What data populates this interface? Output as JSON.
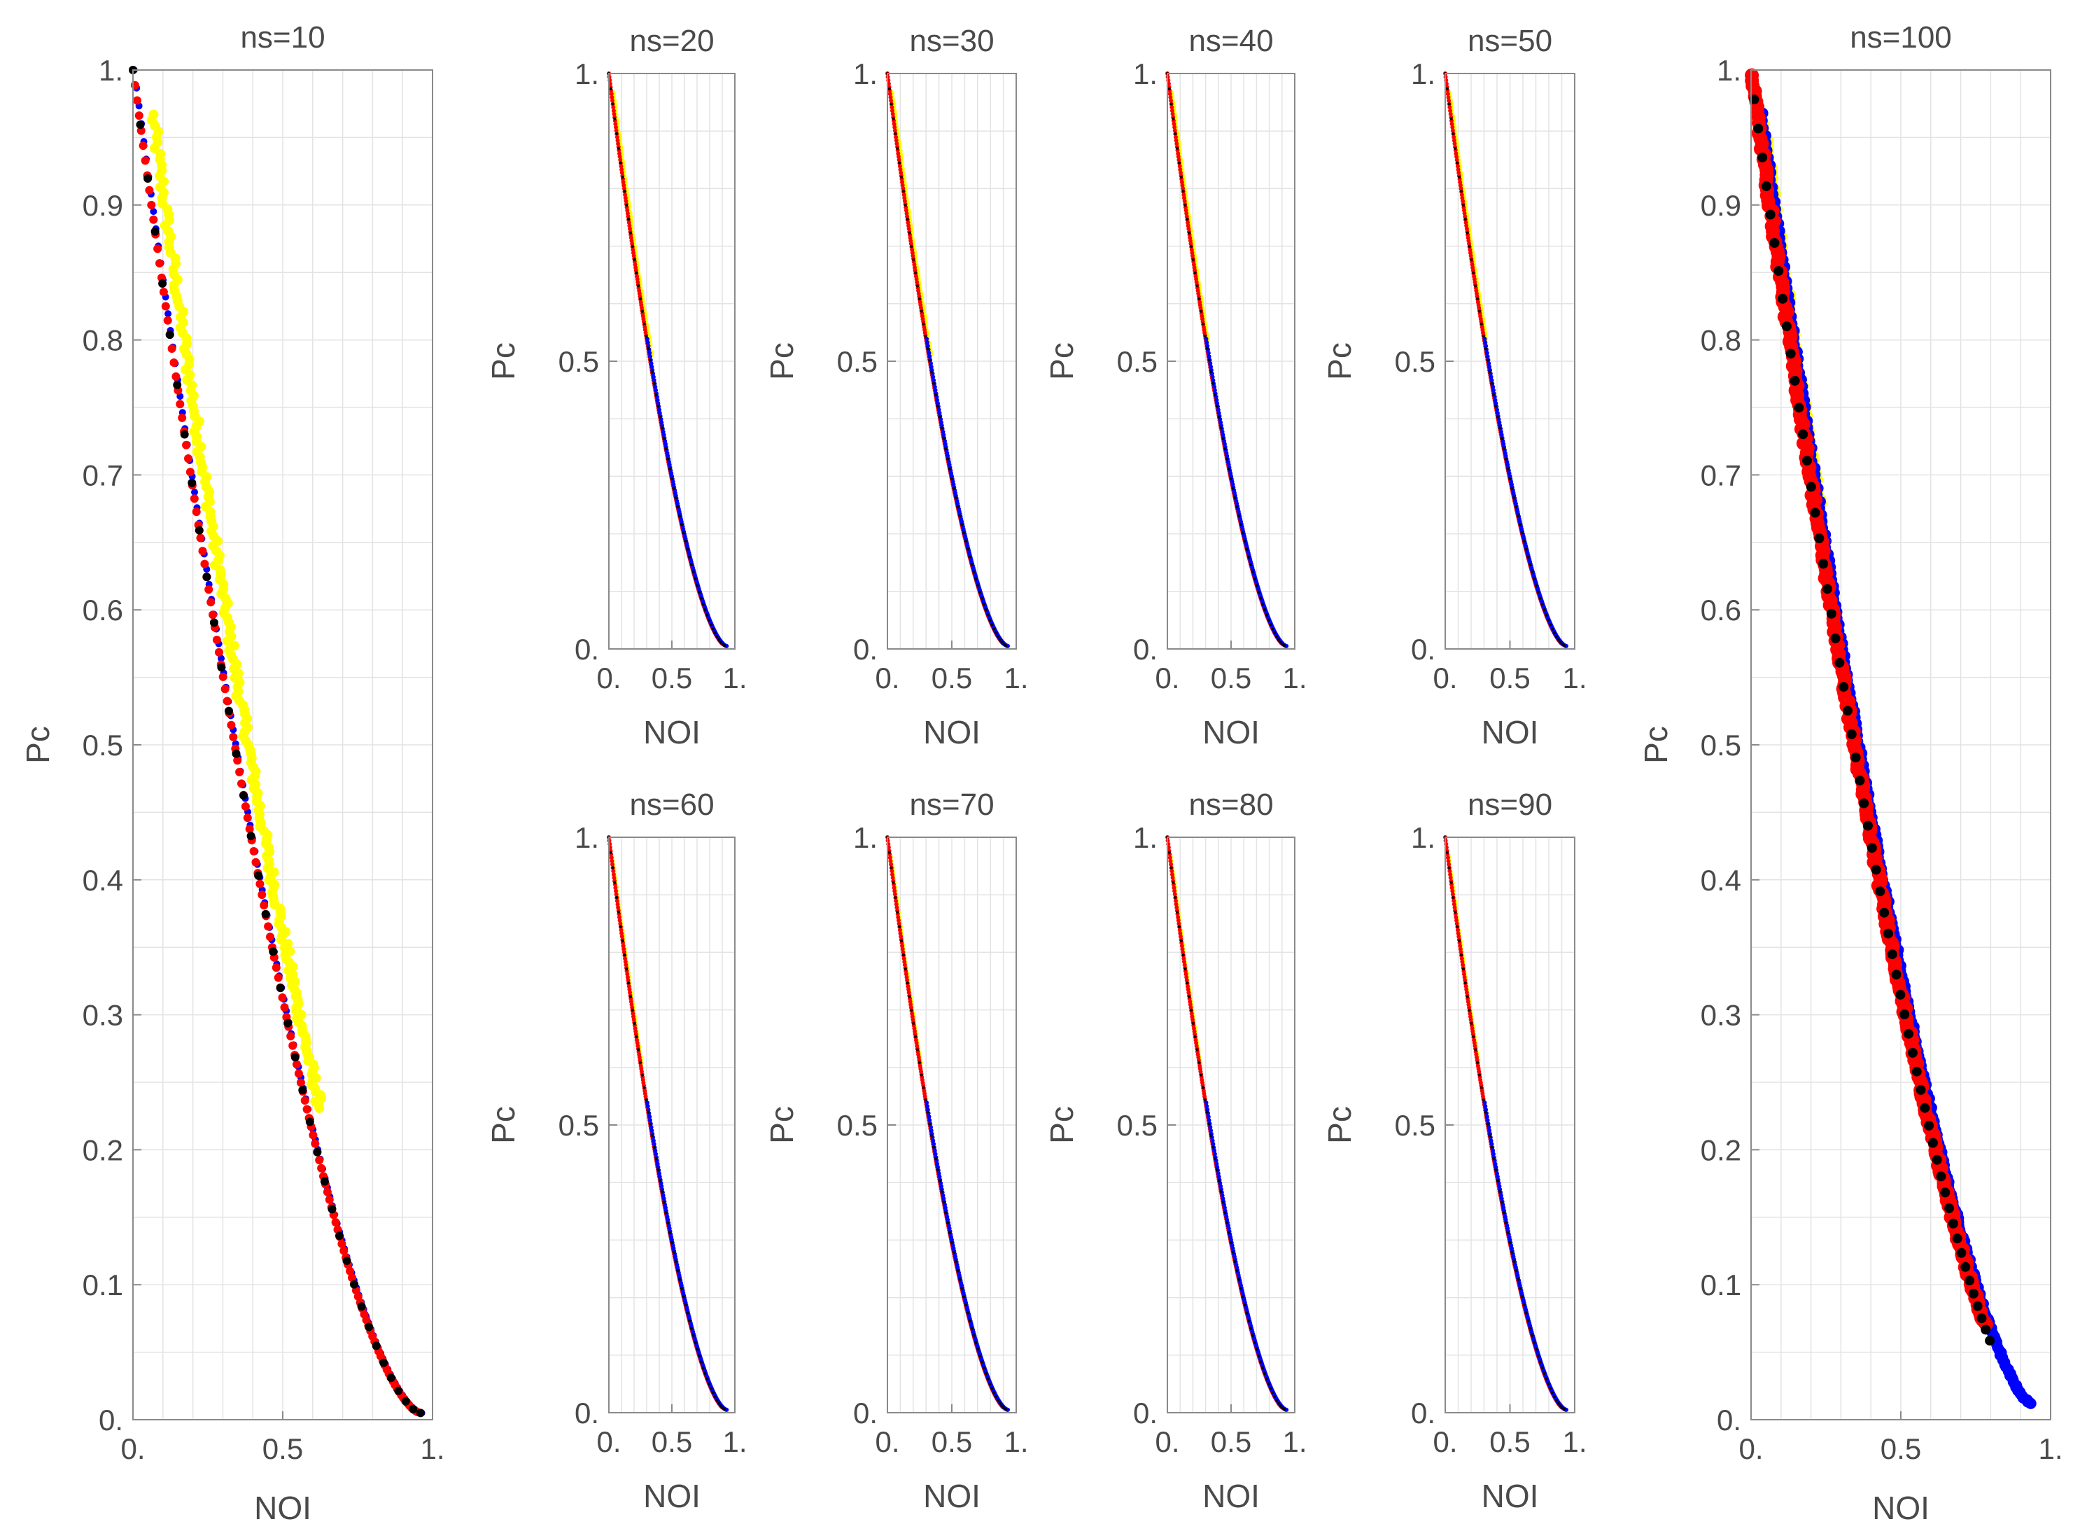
{
  "chart_data": [
    {
      "id": "ns10",
      "type": "scatter",
      "title": "ns=10",
      "xlabel": "NOI",
      "ylabel": "Pc",
      "xlim": [
        0,
        1
      ],
      "ylim": [
        0,
        1
      ],
      "xticks": [
        0,
        0.5,
        1
      ],
      "xtick_labels": [
        "0.",
        "0.5",
        "1."
      ],
      "yticks": [
        0,
        0.1,
        0.2,
        0.3,
        0.4,
        0.5,
        0.6,
        0.7,
        0.8,
        0.9,
        1
      ],
      "ytick_labels": [
        "0.",
        "0.1",
        "0.2",
        "0.3",
        "0.4",
        "0.5",
        "0.6",
        "0.7",
        "0.8",
        "0.9",
        "1."
      ],
      "grid": true,
      "curve": {
        "exponent": 1.6,
        "x_end": 0.96,
        "y_end": 0.005
      },
      "series": [
        {
          "name": "yellow",
          "color": "#ffff00",
          "x_range": [
            0.02,
            0.58
          ],
          "x_offset": 0.045,
          "jitter": 0.012,
          "size": 7,
          "count": 220
        },
        {
          "name": "blue",
          "color": "#0000ff",
          "x_range": [
            0.0,
            0.96
          ],
          "x_offset": 0.004,
          "jitter": 0.0,
          "size": 5,
          "count": 120
        },
        {
          "name": "red",
          "color": "#ff0000",
          "x_range": [
            0.0,
            0.95
          ],
          "x_offset": 0.0,
          "jitter": 0.0,
          "size": 6,
          "count": 140
        },
        {
          "name": "black",
          "color": "#000000",
          "x_range": [
            0.0,
            0.96
          ],
          "x_offset": 0.0,
          "jitter": 0.0,
          "size": 6,
          "count": 40
        }
      ]
    },
    {
      "id": "ns20",
      "type": "scatter",
      "title": "ns=20",
      "xlabel": "NOI",
      "ylabel": "Pc",
      "xlim": [
        0,
        1
      ],
      "ylim": [
        0,
        1
      ],
      "xticks": [
        0,
        0.5,
        1
      ],
      "xtick_labels": [
        "0.",
        "0.5",
        "1."
      ],
      "yticks": [
        0,
        0.5,
        1
      ],
      "ytick_labels": [
        "0.",
        "0.5",
        "1."
      ],
      "grid": true,
      "curve": {
        "exponent": 1.6,
        "x_end": 0.93,
        "y_end": 0.005
      },
      "series": [
        {
          "name": "yellow",
          "color": "#ffff00",
          "x_range": [
            0.02,
            0.32
          ],
          "x_offset": 0.012,
          "jitter": 0.004,
          "size": 4,
          "count": 80
        },
        {
          "name": "red",
          "color": "#ff0000",
          "x_range": [
            0.0,
            0.9
          ],
          "x_offset": 0.0,
          "jitter": 0.0,
          "size": 3,
          "count": 260
        },
        {
          "name": "blue",
          "color": "#0000ff",
          "x_range": [
            0.3,
            0.93
          ],
          "x_offset": 0.005,
          "jitter": 0.0,
          "size": 3,
          "count": 140
        },
        {
          "name": "black",
          "color": "#000000",
          "x_range": [
            0.0,
            0.92
          ],
          "x_offset": 0.0,
          "jitter": 0.0,
          "size": 2,
          "count": 60
        }
      ]
    },
    {
      "id": "ns30",
      "type": "scatter",
      "title": "ns=30",
      "xlabel": "NOI",
      "ylabel": "Pc",
      "xlim": [
        0,
        1
      ],
      "ylim": [
        0,
        1
      ],
      "xticks": [
        0,
        0.5,
        1
      ],
      "xtick_labels": [
        "0.",
        "0.5",
        "1."
      ],
      "yticks": [
        0,
        0.5,
        1
      ],
      "ytick_labels": [
        "0.",
        "0.5",
        "1."
      ],
      "grid": true,
      "curve": {
        "exponent": 1.6,
        "x_end": 0.93,
        "y_end": 0.005
      },
      "series": [
        {
          "name": "yellow",
          "color": "#ffff00",
          "x_range": [
            0.02,
            0.32
          ],
          "x_offset": 0.012,
          "jitter": 0.004,
          "size": 4,
          "count": 80
        },
        {
          "name": "red",
          "color": "#ff0000",
          "x_range": [
            0.0,
            0.9
          ],
          "x_offset": 0.0,
          "jitter": 0.0,
          "size": 3,
          "count": 260
        },
        {
          "name": "blue",
          "color": "#0000ff",
          "x_range": [
            0.3,
            0.93
          ],
          "x_offset": 0.005,
          "jitter": 0.0,
          "size": 3,
          "count": 140
        },
        {
          "name": "black",
          "color": "#000000",
          "x_range": [
            0.0,
            0.92
          ],
          "x_offset": 0.0,
          "jitter": 0.0,
          "size": 2,
          "count": 60
        }
      ]
    },
    {
      "id": "ns40",
      "type": "scatter",
      "title": "ns=40",
      "xlabel": "NOI",
      "ylabel": "Pc",
      "xlim": [
        0,
        1
      ],
      "ylim": [
        0,
        1
      ],
      "xticks": [
        0,
        0.5,
        1
      ],
      "xtick_labels": [
        "0.",
        "0.5",
        "1."
      ],
      "yticks": [
        0,
        0.5,
        1
      ],
      "ytick_labels": [
        "0.",
        "0.5",
        "1."
      ],
      "grid": true,
      "curve": {
        "exponent": 1.6,
        "x_end": 0.93,
        "y_end": 0.005
      },
      "series": [
        {
          "name": "yellow",
          "color": "#ffff00",
          "x_range": [
            0.02,
            0.3
          ],
          "x_offset": 0.01,
          "jitter": 0.003,
          "size": 4,
          "count": 80
        },
        {
          "name": "red",
          "color": "#ff0000",
          "x_range": [
            0.0,
            0.9
          ],
          "x_offset": 0.0,
          "jitter": 0.0,
          "size": 3,
          "count": 260
        },
        {
          "name": "blue",
          "color": "#0000ff",
          "x_range": [
            0.3,
            0.93
          ],
          "x_offset": 0.005,
          "jitter": 0.0,
          "size": 3,
          "count": 140
        },
        {
          "name": "black",
          "color": "#000000",
          "x_range": [
            0.0,
            0.92
          ],
          "x_offset": 0.0,
          "jitter": 0.0,
          "size": 2,
          "count": 60
        }
      ]
    },
    {
      "id": "ns50",
      "type": "scatter",
      "title": "ns=50",
      "xlabel": "NOI",
      "ylabel": "Pc",
      "xlim": [
        0,
        1
      ],
      "ylim": [
        0,
        1
      ],
      "xticks": [
        0,
        0.5,
        1
      ],
      "xtick_labels": [
        "0.",
        "0.5",
        "1."
      ],
      "yticks": [
        0,
        0.5,
        1
      ],
      "ytick_labels": [
        "0.",
        "0.5",
        "1."
      ],
      "grid": true,
      "curve": {
        "exponent": 1.6,
        "x_end": 0.93,
        "y_end": 0.005
      },
      "series": [
        {
          "name": "yellow",
          "color": "#ffff00",
          "x_range": [
            0.02,
            0.3
          ],
          "x_offset": 0.01,
          "jitter": 0.003,
          "size": 4,
          "count": 80
        },
        {
          "name": "red",
          "color": "#ff0000",
          "x_range": [
            0.0,
            0.9
          ],
          "x_offset": 0.0,
          "jitter": 0.0,
          "size": 3,
          "count": 260
        },
        {
          "name": "blue",
          "color": "#0000ff",
          "x_range": [
            0.3,
            0.93
          ],
          "x_offset": 0.005,
          "jitter": 0.0,
          "size": 3,
          "count": 140
        },
        {
          "name": "black",
          "color": "#000000",
          "x_range": [
            0.0,
            0.92
          ],
          "x_offset": 0.0,
          "jitter": 0.0,
          "size": 2,
          "count": 60
        }
      ]
    },
    {
      "id": "ns60",
      "type": "scatter",
      "title": "ns=60",
      "xlabel": "NOI",
      "ylabel": "Pc",
      "xlim": [
        0,
        1
      ],
      "ylim": [
        0,
        1
      ],
      "xticks": [
        0,
        0.5,
        1
      ],
      "xtick_labels": [
        "0.",
        "0.5",
        "1."
      ],
      "yticks": [
        0,
        0.5,
        1
      ],
      "ytick_labels": [
        "0.",
        "0.5",
        "1."
      ],
      "grid": true,
      "curve": {
        "exponent": 1.6,
        "x_end": 0.93,
        "y_end": 0.005
      },
      "series": [
        {
          "name": "yellow",
          "color": "#ffff00",
          "x_range": [
            0.02,
            0.25
          ],
          "x_offset": 0.008,
          "jitter": 0.003,
          "size": 3,
          "count": 60
        },
        {
          "name": "red",
          "color": "#ff0000",
          "x_range": [
            0.0,
            0.9
          ],
          "x_offset": 0.0,
          "jitter": 0.0,
          "size": 3,
          "count": 260
        },
        {
          "name": "blue",
          "color": "#0000ff",
          "x_range": [
            0.3,
            0.93
          ],
          "x_offset": 0.005,
          "jitter": 0.0,
          "size": 3,
          "count": 140
        },
        {
          "name": "black",
          "color": "#000000",
          "x_range": [
            0.0,
            0.92
          ],
          "x_offset": 0.0,
          "jitter": 0.0,
          "size": 2,
          "count": 60
        }
      ]
    },
    {
      "id": "ns70",
      "type": "scatter",
      "title": "ns=70",
      "xlabel": "NOI",
      "ylabel": "Pc",
      "xlim": [
        0,
        1
      ],
      "ylim": [
        0,
        1
      ],
      "xticks": [
        0,
        0.5,
        1
      ],
      "xtick_labels": [
        "0.",
        "0.5",
        "1."
      ],
      "yticks": [
        0,
        0.5,
        1
      ],
      "ytick_labels": [
        "0.",
        "0.5",
        "1."
      ],
      "grid": true,
      "curve": {
        "exponent": 1.6,
        "x_end": 0.93,
        "y_end": 0.005
      },
      "series": [
        {
          "name": "yellow",
          "color": "#ffff00",
          "x_range": [
            0.02,
            0.25
          ],
          "x_offset": 0.008,
          "jitter": 0.003,
          "size": 3,
          "count": 60
        },
        {
          "name": "red",
          "color": "#ff0000",
          "x_range": [
            0.0,
            0.9
          ],
          "x_offset": 0.0,
          "jitter": 0.0,
          "size": 3,
          "count": 260
        },
        {
          "name": "blue",
          "color": "#0000ff",
          "x_range": [
            0.3,
            0.93
          ],
          "x_offset": 0.005,
          "jitter": 0.0,
          "size": 3,
          "count": 140
        },
        {
          "name": "black",
          "color": "#000000",
          "x_range": [
            0.0,
            0.92
          ],
          "x_offset": 0.0,
          "jitter": 0.0,
          "size": 2,
          "count": 60
        }
      ]
    },
    {
      "id": "ns80",
      "type": "scatter",
      "title": "ns=80",
      "xlabel": "NOI",
      "ylabel": "Pc",
      "xlim": [
        0,
        1
      ],
      "ylim": [
        0,
        1
      ],
      "xticks": [
        0,
        0.5,
        1
      ],
      "xtick_labels": [
        "0.",
        "0.5",
        "1."
      ],
      "yticks": [
        0,
        0.5,
        1
      ],
      "ytick_labels": [
        "0.",
        "0.5",
        "1."
      ],
      "grid": true,
      "curve": {
        "exponent": 1.6,
        "x_end": 0.93,
        "y_end": 0.005
      },
      "series": [
        {
          "name": "yellow",
          "color": "#ffff00",
          "x_range": [
            0.02,
            0.25
          ],
          "x_offset": 0.008,
          "jitter": 0.003,
          "size": 3,
          "count": 60
        },
        {
          "name": "red",
          "color": "#ff0000",
          "x_range": [
            0.0,
            0.9
          ],
          "x_offset": 0.0,
          "jitter": 0.0,
          "size": 3,
          "count": 260
        },
        {
          "name": "blue",
          "color": "#0000ff",
          "x_range": [
            0.3,
            0.93
          ],
          "x_offset": 0.005,
          "jitter": 0.0,
          "size": 3,
          "count": 140
        },
        {
          "name": "black",
          "color": "#000000",
          "x_range": [
            0.0,
            0.92
          ],
          "x_offset": 0.0,
          "jitter": 0.0,
          "size": 2,
          "count": 60
        }
      ]
    },
    {
      "id": "ns90",
      "type": "scatter",
      "title": "ns=90",
      "xlabel": "NOI",
      "ylabel": "Pc",
      "xlim": [
        0,
        1
      ],
      "ylim": [
        0,
        1
      ],
      "xticks": [
        0,
        0.5,
        1
      ],
      "xtick_labels": [
        "0.",
        "0.5",
        "1."
      ],
      "yticks": [
        0,
        0.5,
        1
      ],
      "ytick_labels": [
        "0.",
        "0.5",
        "1."
      ],
      "grid": true,
      "curve": {
        "exponent": 1.6,
        "x_end": 0.93,
        "y_end": 0.005
      },
      "series": [
        {
          "name": "yellow",
          "color": "#ffff00",
          "x_range": [
            0.02,
            0.25
          ],
          "x_offset": 0.008,
          "jitter": 0.003,
          "size": 3,
          "count": 60
        },
        {
          "name": "red",
          "color": "#ff0000",
          "x_range": [
            0.0,
            0.9
          ],
          "x_offset": 0.0,
          "jitter": 0.0,
          "size": 3,
          "count": 260
        },
        {
          "name": "blue",
          "color": "#0000ff",
          "x_range": [
            0.3,
            0.93
          ],
          "x_offset": 0.005,
          "jitter": 0.0,
          "size": 3,
          "count": 140
        },
        {
          "name": "black",
          "color": "#000000",
          "x_range": [
            0.0,
            0.92
          ],
          "x_offset": 0.0,
          "jitter": 0.0,
          "size": 2,
          "count": 60
        }
      ]
    },
    {
      "id": "ns100",
      "type": "scatter",
      "title": "ns=100",
      "xlabel": "NOI",
      "ylabel": "Pc",
      "xlim": [
        0,
        1
      ],
      "ylim": [
        0,
        1
      ],
      "xticks": [
        0,
        0.5,
        1
      ],
      "xtick_labels": [
        "0.",
        "0.5",
        "1."
      ],
      "yticks": [
        0,
        0.1,
        0.2,
        0.3,
        0.4,
        0.5,
        0.6,
        0.7,
        0.8,
        0.9,
        1
      ],
      "ytick_labels": [
        "0.",
        "0.1",
        "0.2",
        "0.3",
        "0.4",
        "0.5",
        "0.6",
        "0.7",
        "0.8",
        "0.9",
        "1."
      ],
      "grid": true,
      "curve": {
        "exponent": 1.5,
        "x_end": 0.92,
        "y_end": 0.012
      },
      "series": [
        {
          "name": "yellow",
          "color": "#ffff00",
          "x_range": [
            0.02,
            0.22
          ],
          "x_offset": 0.02,
          "jitter": 0.006,
          "size": 7,
          "count": 80
        },
        {
          "name": "blue",
          "color": "#0000ff",
          "x_range": [
            0.02,
            0.92
          ],
          "x_offset": 0.016,
          "jitter": 0.004,
          "size": 8,
          "count": 260
        },
        {
          "name": "red",
          "color": "#ff0000",
          "x_range": [
            0.0,
            0.78
          ],
          "x_offset": 0.0,
          "jitter": 0.006,
          "size": 10,
          "count": 320
        },
        {
          "name": "black",
          "color": "#000000",
          "x_range": [
            0.0,
            0.8
          ],
          "x_offset": -0.003,
          "jitter": 0.0,
          "size": 7,
          "count": 60
        }
      ]
    }
  ]
}
